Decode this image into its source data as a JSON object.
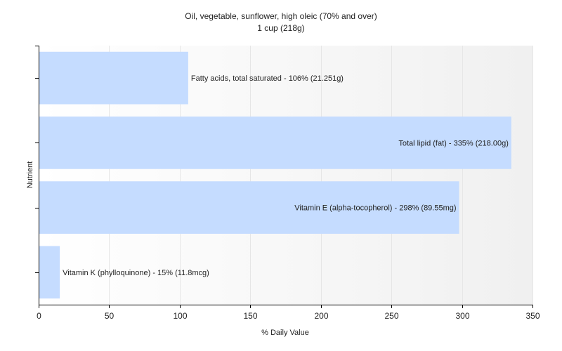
{
  "chart_data": {
    "type": "bar",
    "orientation": "horizontal",
    "title": "Oil, vegetable, sunflower, high oleic (70% and over)",
    "subtitle": "1 cup (218g)",
    "xlabel": "% Daily Value",
    "ylabel": "Nutrient",
    "xlim": [
      0,
      350
    ],
    "xticks": [
      0,
      50,
      100,
      150,
      200,
      250,
      300,
      350
    ],
    "grid": true,
    "categories": [
      "Fatty acids, total saturated",
      "Total lipid (fat)",
      "Vitamin E (alpha-tocopherol)",
      "Vitamin K (phylloquinone)"
    ],
    "values": [
      106,
      335,
      298,
      15
    ],
    "amounts": [
      "21.251g",
      "218.00g",
      "89.55mg",
      "11.8mcg"
    ],
    "data_labels": [
      "Fatty acids, total saturated - 106% (21.251g)",
      "Total lipid (fat) - 335% (218.00g)",
      "Vitamin E (alpha-tocopherol) - 298% (89.55mg)",
      "Vitamin K (phylloquinone) - 15% (11.8mcg)"
    ],
    "colors": {
      "bar": "#c5dcff",
      "axis": "#000000",
      "grid": "#e6e6e6",
      "background_gradient_end": "#f0f0f0"
    }
  }
}
